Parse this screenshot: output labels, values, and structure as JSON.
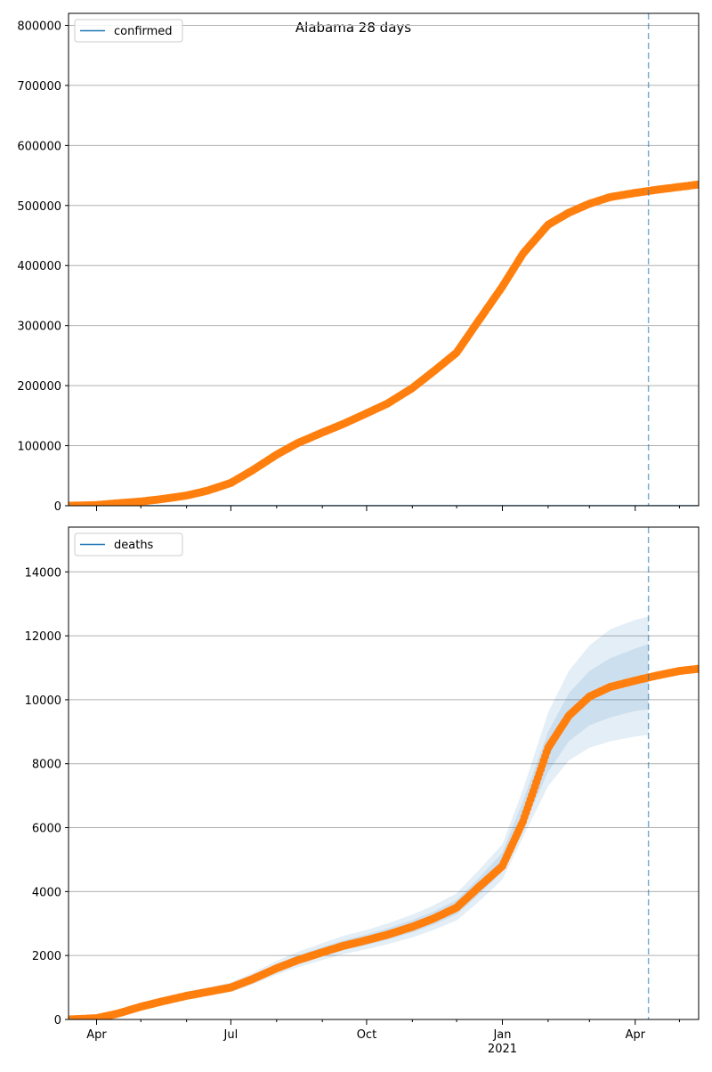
{
  "title": "Alabama 28 days",
  "colors": {
    "observed": "#ff7f0e",
    "model": "#1f77b4",
    "band": "#1f77b4",
    "grid": "#b0b0b0",
    "cutoff": "#1f77b4"
  },
  "x_axis": {
    "start": "2020-03-13",
    "end": "2021-05-14",
    "ticks": [
      {
        "date": "2020-04-01",
        "label": "Apr",
        "sublabel": ""
      },
      {
        "date": "2020-07-01",
        "label": "Jul",
        "sublabel": ""
      },
      {
        "date": "2020-10-01",
        "label": "Oct",
        "sublabel": ""
      },
      {
        "date": "2021-01-01",
        "label": "Jan",
        "sublabel": "2021"
      },
      {
        "date": "2021-04-01",
        "label": "Apr",
        "sublabel": ""
      }
    ],
    "minor_ticks": [
      "2020-05-01",
      "2020-06-01",
      "2020-08-01",
      "2020-09-01",
      "2020-11-01",
      "2020-12-01",
      "2021-02-01",
      "2021-03-01",
      "2021-05-01"
    ]
  },
  "chart_data": [
    {
      "type": "scatter",
      "title": "Alabama 28 days",
      "xlabel": "",
      "ylabel": "",
      "ylim": [
        0,
        820000
      ],
      "yticks": [
        0,
        100000,
        200000,
        300000,
        400000,
        500000,
        600000,
        700000,
        800000
      ],
      "grid": "horizontal",
      "legend": {
        "position": "top-left",
        "entries": [
          "confirmed"
        ]
      },
      "forecast_start": "2021-04-10",
      "model_line": "flat at 0",
      "series": [
        {
          "name": "confirmed",
          "kind": "observed",
          "points": [
            [
              "2020-03-13",
              0
            ],
            [
              "2020-03-31",
              1000
            ],
            [
              "2020-04-15",
              4000
            ],
            [
              "2020-05-01",
              7000
            ],
            [
              "2020-05-15",
              11000
            ],
            [
              "2020-06-01",
              17000
            ],
            [
              "2020-06-15",
              25000
            ],
            [
              "2020-07-01",
              38000
            ],
            [
              "2020-07-15",
              58000
            ],
            [
              "2020-08-01",
              85000
            ],
            [
              "2020-08-15",
              104000
            ],
            [
              "2020-09-01",
              122000
            ],
            [
              "2020-09-15",
              136000
            ],
            [
              "2020-10-01",
              154000
            ],
            [
              "2020-10-15",
              170000
            ],
            [
              "2020-11-01",
              196000
            ],
            [
              "2020-11-15",
              223000
            ],
            [
              "2020-12-01",
              255000
            ],
            [
              "2020-12-15",
              305000
            ],
            [
              "2021-01-01",
              365000
            ],
            [
              "2021-01-15",
              420000
            ],
            [
              "2021-02-01",
              468000
            ],
            [
              "2021-02-15",
              488000
            ],
            [
              "2021-03-01",
              503000
            ],
            [
              "2021-03-15",
              514000
            ],
            [
              "2021-04-01",
              521000
            ],
            [
              "2021-04-15",
              526000
            ],
            [
              "2021-05-01",
              531000
            ],
            [
              "2021-05-14",
              535000
            ]
          ]
        }
      ]
    },
    {
      "type": "scatter",
      "xlabel": "",
      "ylabel": "",
      "ylim": [
        0,
        15400
      ],
      "yticks": [
        0,
        2000,
        4000,
        6000,
        8000,
        10000,
        12000,
        14000
      ],
      "grid": "horizontal",
      "legend": {
        "position": "top-left",
        "entries": [
          "deaths"
        ]
      },
      "forecast_start": "2021-04-10",
      "series": [
        {
          "name": "deaths",
          "kind": "model",
          "points": [
            [
              "2020-03-13",
              0
            ],
            [
              "2020-04-01",
              40
            ],
            [
              "2020-04-15",
              180
            ],
            [
              "2020-05-01",
              400
            ],
            [
              "2020-05-15",
              560
            ],
            [
              "2020-06-01",
              740
            ],
            [
              "2020-06-15",
              860
            ],
            [
              "2020-07-01",
              1000
            ],
            [
              "2020-07-15",
              1250
            ],
            [
              "2020-08-01",
              1600
            ],
            [
              "2020-08-15",
              1850
            ],
            [
              "2020-09-01",
              2100
            ],
            [
              "2020-09-15",
              2300
            ],
            [
              "2020-10-01",
              2480
            ],
            [
              "2020-10-15",
              2650
            ],
            [
              "2020-11-01",
              2900
            ],
            [
              "2020-11-15",
              3150
            ],
            [
              "2020-12-01",
              3500
            ],
            [
              "2020-12-15",
              4100
            ],
            [
              "2021-01-01",
              4900
            ],
            [
              "2021-01-15",
              6400
            ],
            [
              "2021-02-01",
              8300
            ],
            [
              "2021-02-15",
              9400
            ],
            [
              "2021-03-01",
              10000
            ],
            [
              "2021-03-15",
              10300
            ],
            [
              "2021-04-01",
              10550
            ],
            [
              "2021-04-10",
              10650
            ]
          ],
          "bands": [
            {
              "lower": [
                0,
                20,
                130,
                330,
                470,
                630,
                740,
                860,
                1080,
                1400,
                1630,
                1860,
                2040,
                2200,
                2350,
                2570,
                2790,
                3100,
                3640,
                4380,
                5700,
                7300,
                8100,
                8500,
                8700,
                8850,
                8900
              ],
              "upper": [
                0,
                60,
                240,
                490,
                670,
                870,
                1000,
                1160,
                1440,
                1830,
                2110,
                2390,
                2610,
                2800,
                3000,
                3280,
                3560,
                3950,
                4620,
                5480,
                7200,
                9600,
                10900,
                11700,
                12200,
                12500,
                12600
              ]
            },
            {
              "lower": [
                0,
                25,
                150,
                360,
                510,
                680,
                790,
                920,
                1150,
                1490,
                1730,
                1970,
                2160,
                2330,
                2490,
                2720,
                2960,
                3290,
                3860,
                4620,
                6000,
                7750,
                8700,
                9200,
                9450,
                9650,
                9700
              ],
              "upper": [
                0,
                55,
                215,
                450,
                620,
                810,
                940,
                1090,
                1360,
                1730,
                2000,
                2260,
                2470,
                2660,
                2850,
                3110,
                3370,
                3740,
                4380,
                5220,
                6850,
                9000,
                10200,
                10900,
                11300,
                11600,
                11750
              ]
            }
          ]
        },
        {
          "name": "",
          "kind": "observed",
          "points": [
            [
              "2020-03-13",
              0
            ],
            [
              "2020-04-01",
              40
            ],
            [
              "2020-04-15",
              180
            ],
            [
              "2020-05-01",
              400
            ],
            [
              "2020-05-15",
              560
            ],
            [
              "2020-06-01",
              740
            ],
            [
              "2020-06-15",
              860
            ],
            [
              "2020-07-01",
              1000
            ],
            [
              "2020-07-15",
              1250
            ],
            [
              "2020-08-01",
              1600
            ],
            [
              "2020-08-15",
              1850
            ],
            [
              "2020-09-01",
              2100
            ],
            [
              "2020-09-15",
              2300
            ],
            [
              "2020-10-01",
              2480
            ],
            [
              "2020-10-15",
              2650
            ],
            [
              "2020-11-01",
              2900
            ],
            [
              "2020-11-15",
              3150
            ],
            [
              "2020-12-01",
              3500
            ],
            [
              "2020-12-15",
              4100
            ],
            [
              "2021-01-01",
              4800
            ],
            [
              "2021-01-15",
              6200
            ],
            [
              "2021-02-01",
              8500
            ],
            [
              "2021-02-15",
              9500
            ],
            [
              "2021-03-01",
              10100
            ],
            [
              "2021-03-15",
              10400
            ],
            [
              "2021-04-01",
              10600
            ],
            [
              "2021-04-15",
              10750
            ],
            [
              "2021-05-01",
              10900
            ],
            [
              "2021-05-14",
              10970
            ]
          ]
        }
      ]
    }
  ]
}
